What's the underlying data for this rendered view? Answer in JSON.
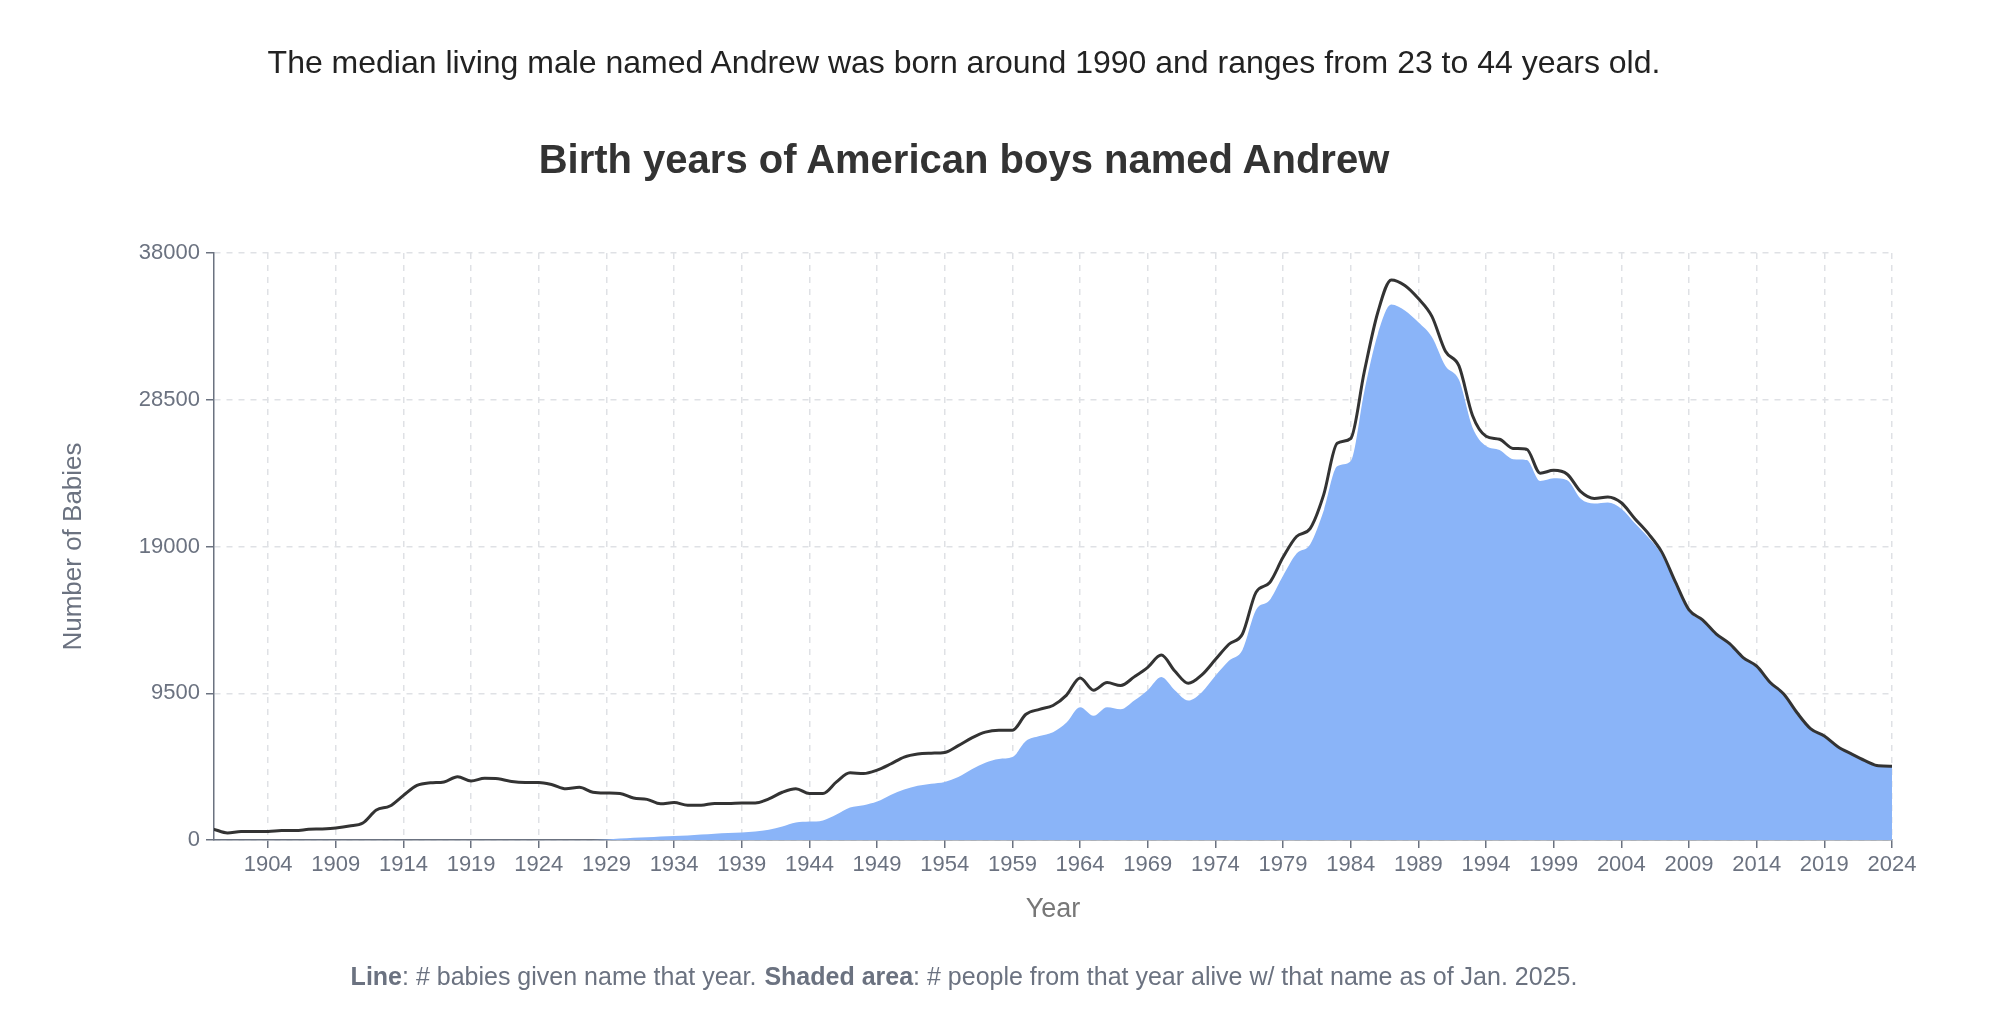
{
  "chart_data": {
    "type": "line",
    "title": "Birth years of American boys named Andrew",
    "subtitle": "The median living male named Andrew was born around 1990 and ranges from 23 to 44 years old.",
    "xlabel": "Year",
    "ylabel": "Number of Babies",
    "annotations": [
      "Line: # babies given name that year.",
      "Shaded area: # people from that year alive w/ that name as of Jan. 2025."
    ],
    "x": [
      1900,
      1901,
      1902,
      1903,
      1904,
      1905,
      1906,
      1907,
      1908,
      1909,
      1910,
      1911,
      1912,
      1913,
      1914,
      1915,
      1916,
      1917,
      1918,
      1919,
      1920,
      1921,
      1922,
      1923,
      1924,
      1925,
      1926,
      1927,
      1928,
      1929,
      1930,
      1931,
      1932,
      1933,
      1934,
      1935,
      1936,
      1937,
      1938,
      1939,
      1940,
      1941,
      1942,
      1943,
      1944,
      1945,
      1946,
      1947,
      1948,
      1949,
      1950,
      1951,
      1952,
      1953,
      1954,
      1955,
      1956,
      1957,
      1958,
      1959,
      1960,
      1961,
      1962,
      1963,
      1964,
      1965,
      1966,
      1967,
      1968,
      1969,
      1970,
      1971,
      1972,
      1973,
      1974,
      1975,
      1976,
      1977,
      1978,
      1979,
      1980,
      1981,
      1982,
      1983,
      1984,
      1985,
      1986,
      1987,
      1988,
      1989,
      1990,
      1991,
      1992,
      1993,
      1994,
      1995,
      1996,
      1997,
      1998,
      1999,
      2000,
      2001,
      2002,
      2003,
      2004,
      2005,
      2006,
      2007,
      2008,
      2009,
      2010,
      2011,
      2012,
      2013,
      2014,
      2015,
      2016,
      2017,
      2018,
      2019,
      2020,
      2021,
      2022,
      2023,
      2024
    ],
    "xlim": [
      1900,
      2024
    ],
    "xticks": [
      1904,
      1909,
      1914,
      1919,
      1924,
      1929,
      1934,
      1939,
      1944,
      1949,
      1954,
      1959,
      1964,
      1969,
      1974,
      1979,
      1984,
      1989,
      1994,
      1999,
      2004,
      2009,
      2014,
      2019,
      2024
    ],
    "ylim": [
      0,
      38000
    ],
    "yticks": [
      0,
      9500,
      19000,
      28500,
      38000
    ],
    "grid": true,
    "series": [
      {
        "type": "area",
        "color": "#8ab4f8",
        "values": [
          0,
          0,
          0,
          0,
          0,
          0,
          0,
          0,
          0,
          0,
          0,
          0,
          0,
          0,
          0,
          0,
          0,
          0,
          0,
          0,
          0,
          0,
          0,
          0,
          0,
          0,
          0,
          0,
          0,
          30,
          90,
          150,
          170,
          230,
          260,
          290,
          350,
          410,
          460,
          490,
          550,
          670,
          870,
          1130,
          1190,
          1270,
          1650,
          2100,
          2250,
          2490,
          2920,
          3270,
          3510,
          3640,
          3760,
          4080,
          4580,
          5000,
          5250,
          5370,
          6410,
          6730,
          6980,
          7600,
          8590,
          8040,
          8590,
          8460,
          9030,
          9700,
          10560,
          9700,
          9030,
          9570,
          10630,
          11600,
          12300,
          14890,
          15520,
          17100,
          18540,
          19130,
          21310,
          24190,
          24520,
          29020,
          32740,
          34670,
          34280,
          33510,
          32560,
          30690,
          29790,
          26710,
          25500,
          25240,
          24650,
          24600,
          23240,
          23420,
          23290,
          22090,
          21780,
          21850,
          21450,
          20500,
          19580,
          18450,
          16560,
          14790,
          14160,
          13270,
          12640,
          11750,
          11190,
          10150,
          9410,
          8190,
          7160,
          6700,
          6010,
          5550,
          5120,
          4780,
          4760
        ]
      },
      {
        "type": "line",
        "color": "#333333",
        "values": [
          690,
          460,
          550,
          550,
          550,
          610,
          610,
          690,
          720,
          780,
          900,
          1100,
          1940,
          2200,
          2890,
          3530,
          3700,
          3760,
          4100,
          3820,
          3990,
          3960,
          3790,
          3730,
          3730,
          3580,
          3320,
          3410,
          3090,
          3040,
          3010,
          2720,
          2630,
          2340,
          2430,
          2250,
          2250,
          2370,
          2370,
          2400,
          2400,
          2660,
          3090,
          3320,
          3010,
          3010,
          3760,
          4350,
          4300,
          4520,
          4920,
          5370,
          5570,
          5620,
          5670,
          6110,
          6610,
          6980,
          7100,
          7100,
          8140,
          8460,
          8710,
          9380,
          10490,
          9700,
          10190,
          10000,
          10560,
          11180,
          11970,
          10940,
          10140,
          10690,
          11680,
          12670,
          13340,
          16030,
          16650,
          18300,
          19650,
          20160,
          22340,
          25680,
          25990,
          30300,
          34150,
          36260,
          35900,
          35050,
          33900,
          31640,
          30690,
          27480,
          26140,
          25940,
          25350,
          25300,
          23750,
          23930,
          23680,
          22550,
          22110,
          22210,
          21830,
          20800,
          19830,
          18620,
          16690,
          14890,
          14250,
          13350,
          12710,
          11810,
          11250,
          10200,
          9450,
          8220,
          7190,
          6730,
          6040,
          5570,
          5140,
          4800,
          4780
        ]
      }
    ]
  }
}
